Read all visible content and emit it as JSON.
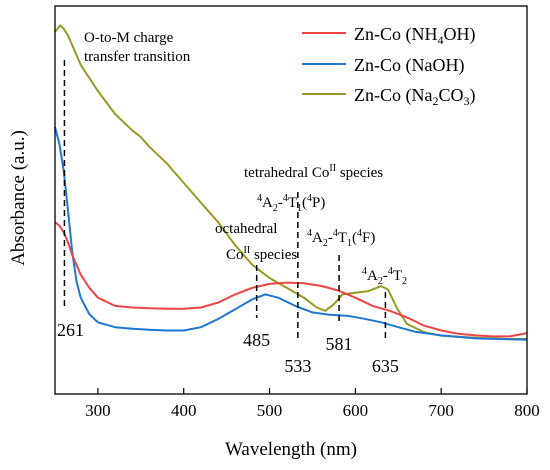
{
  "chart_data": {
    "type": "line",
    "xlabel": "Wavelength (nm)",
    "ylabel": "Absorbance (a.u.)",
    "xlim": [
      250,
      800
    ],
    "ylim": [
      0,
      1
    ],
    "x_ticks": [
      300,
      400,
      500,
      600,
      700,
      800
    ],
    "y_ticks_visible": false,
    "grid": false,
    "legend_position": "top-right",
    "series": [
      {
        "name": "Zn-Co (NH4OH)",
        "legend_parts": [
          "Zn-Co (NH",
          "4",
          "OH)"
        ],
        "color": "#ee4444",
        "points": [
          [
            250,
            0.42
          ],
          [
            255,
            0.41
          ],
          [
            260,
            0.39
          ],
          [
            265,
            0.36
          ],
          [
            270,
            0.32
          ],
          [
            280,
            0.26
          ],
          [
            290,
            0.22
          ],
          [
            300,
            0.19
          ],
          [
            320,
            0.165
          ],
          [
            340,
            0.16
          ],
          [
            360,
            0.158
          ],
          [
            380,
            0.156
          ],
          [
            400,
            0.156
          ],
          [
            420,
            0.16
          ],
          [
            440,
            0.175
          ],
          [
            460,
            0.2
          ],
          [
            480,
            0.22
          ],
          [
            500,
            0.232
          ],
          [
            520,
            0.236
          ],
          [
            540,
            0.234
          ],
          [
            560,
            0.226
          ],
          [
            580,
            0.212
          ],
          [
            600,
            0.19
          ],
          [
            620,
            0.165
          ],
          [
            640,
            0.15
          ],
          [
            660,
            0.13
          ],
          [
            680,
            0.105
          ],
          [
            700,
            0.09
          ],
          [
            720,
            0.08
          ],
          [
            740,
            0.075
          ],
          [
            760,
            0.072
          ],
          [
            780,
            0.072
          ],
          [
            800,
            0.082
          ]
        ]
      },
      {
        "name": "Zn-Co (NaOH)",
        "legend_parts": [
          "Zn-Co (NaOH)"
        ],
        "color": "#1f77d4",
        "points": [
          [
            250,
            0.71
          ],
          [
            255,
            0.66
          ],
          [
            260,
            0.58
          ],
          [
            265,
            0.46
          ],
          [
            270,
            0.33
          ],
          [
            275,
            0.24
          ],
          [
            280,
            0.19
          ],
          [
            290,
            0.14
          ],
          [
            300,
            0.115
          ],
          [
            320,
            0.1
          ],
          [
            340,
            0.095
          ],
          [
            360,
            0.092
          ],
          [
            380,
            0.09
          ],
          [
            400,
            0.09
          ],
          [
            420,
            0.1
          ],
          [
            440,
            0.125
          ],
          [
            460,
            0.155
          ],
          [
            480,
            0.185
          ],
          [
            495,
            0.2
          ],
          [
            510,
            0.19
          ],
          [
            530,
            0.165
          ],
          [
            550,
            0.145
          ],
          [
            570,
            0.138
          ],
          [
            590,
            0.135
          ],
          [
            610,
            0.126
          ],
          [
            630,
            0.115
          ],
          [
            650,
            0.1
          ],
          [
            670,
            0.086
          ],
          [
            700,
            0.075
          ],
          [
            740,
            0.066
          ],
          [
            780,
            0.063
          ],
          [
            800,
            0.062
          ]
        ]
      },
      {
        "name": "Zn-Co (Na2CO3)",
        "legend_parts": [
          "Zn-Co (Na",
          "2",
          "CO",
          "3",
          ")"
        ],
        "color": "#999922",
        "points": [
          [
            250,
            1.0
          ],
          [
            256,
            1.02
          ],
          [
            260,
            1.01
          ],
          [
            265,
            0.99
          ],
          [
            270,
            0.96
          ],
          [
            280,
            0.9
          ],
          [
            290,
            0.86
          ],
          [
            300,
            0.82
          ],
          [
            320,
            0.75
          ],
          [
            340,
            0.7
          ],
          [
            350,
            0.68
          ],
          [
            360,
            0.65
          ],
          [
            380,
            0.6
          ],
          [
            400,
            0.54
          ],
          [
            420,
            0.48
          ],
          [
            440,
            0.42
          ],
          [
            460,
            0.35
          ],
          [
            480,
            0.29
          ],
          [
            500,
            0.25
          ],
          [
            520,
            0.22
          ],
          [
            540,
            0.19
          ],
          [
            555,
            0.16
          ],
          [
            565,
            0.15
          ],
          [
            575,
            0.17
          ],
          [
            585,
            0.2
          ],
          [
            600,
            0.205
          ],
          [
            615,
            0.21
          ],
          [
            630,
            0.225
          ],
          [
            638,
            0.215
          ],
          [
            648,
            0.16
          ],
          [
            660,
            0.11
          ],
          [
            680,
            0.085
          ],
          [
            700,
            0.074
          ],
          [
            740,
            0.068
          ],
          [
            780,
            0.064
          ],
          [
            800,
            0.064
          ]
        ]
      }
    ],
    "markers": [
      {
        "x": 261,
        "label": "261"
      },
      {
        "x": 485,
        "label": "485"
      },
      {
        "x": 533,
        "label": "533"
      },
      {
        "x": 581,
        "label": "581"
      },
      {
        "x": 635,
        "label": "635"
      }
    ],
    "annotations": [
      {
        "id": "otm",
        "lines": [
          "O-to-M charge",
          "transfer transition"
        ]
      },
      {
        "id": "tetra",
        "lines": [
          "tetrahedral Co",
          "II",
          " species"
        ]
      },
      {
        "id": "p",
        "parts": [
          "4",
          "A",
          "2",
          "-",
          "4",
          "T",
          "1",
          "(",
          "4",
          "P)"
        ]
      },
      {
        "id": "octa",
        "lines": [
          "octahedral",
          "Co",
          "II",
          " species"
        ]
      },
      {
        "id": "f",
        "parts": [
          "4",
          "A",
          "2",
          "-",
          "4",
          "T",
          "1",
          "(",
          "4",
          "F)"
        ]
      },
      {
        "id": "t2",
        "parts": [
          "4",
          "A",
          "2",
          "-",
          "4",
          "T",
          "2"
        ]
      }
    ]
  }
}
